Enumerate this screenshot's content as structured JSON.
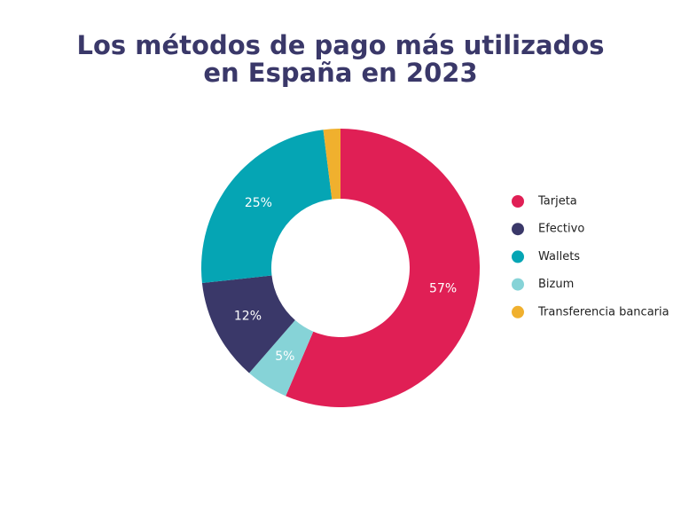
{
  "chart_data": {
    "type": "donut",
    "title": "Los métodos de pago más utilizados en España en 2023",
    "categories": [
      "Tarjeta",
      "Efectivo",
      "Wallets",
      "Bizum",
      "Transferencia bancaria"
    ],
    "values": [
      57,
      12,
      25,
      5,
      2
    ],
    "value_labels": [
      "57%",
      "12%",
      "25%",
      "5%",
      null
    ],
    "colors": [
      "#e01f55",
      "#3a3869",
      "#05a5b4",
      "#86d3d7",
      "#f0b02e"
    ],
    "legend": "right"
  }
}
